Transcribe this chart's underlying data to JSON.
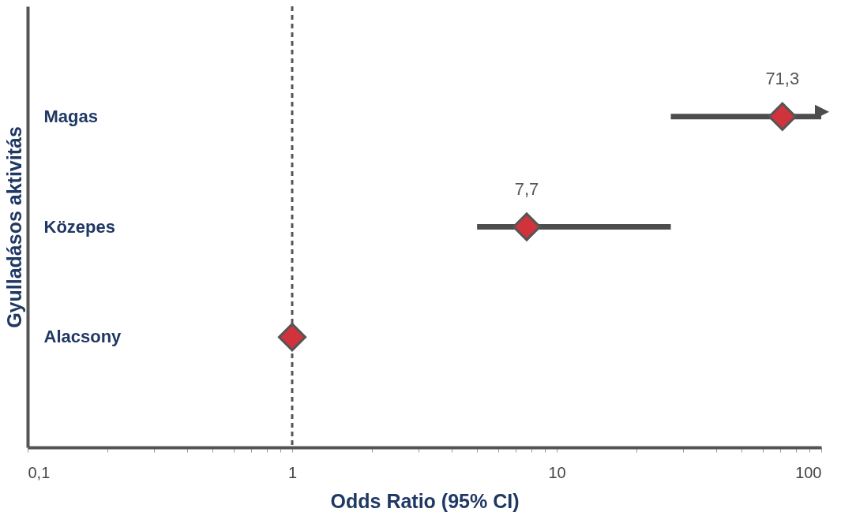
{
  "chart_data": {
    "type": "scatter",
    "orientation": "horizontal",
    "log": "x",
    "xlabel": "Odds Ratio (95% CI)",
    "ylabel": "Gyulladásos aktivitás",
    "categories": [
      "Magas",
      "Közepes",
      "Alacsony"
    ],
    "values": [
      71.3,
      7.7,
      1
    ],
    "errors": [
      [
        27,
        100
      ],
      [
        5,
        27
      ],
      null
    ],
    "value_labels": [
      "71,3",
      "7,7",
      null
    ],
    "color": "#d0333c",
    "marker": "diamond",
    "grid": false,
    "xlim": [
      0.1,
      100
    ],
    "xticks": [
      {
        "value": 0.1,
        "label": "0,1"
      },
      {
        "value": 0.2,
        "label": null
      },
      {
        "value": 0.3,
        "label": null
      },
      {
        "value": 0.4,
        "label": null
      },
      {
        "value": 0.5,
        "label": null
      },
      {
        "value": 0.6,
        "label": null
      },
      {
        "value": 0.7,
        "label": null
      },
      {
        "value": 0.8,
        "label": null
      },
      {
        "value": 0.9,
        "label": null
      },
      1,
      {
        "value": 2,
        "label": null
      },
      {
        "value": 3,
        "label": null
      },
      {
        "value": 4,
        "label": null
      },
      {
        "value": 5,
        "label": null
      },
      {
        "value": 6,
        "label": null
      },
      {
        "value": 7,
        "label": null
      },
      {
        "value": 8,
        "label": null
      },
      {
        "value": 9,
        "label": null
      },
      10,
      {
        "value": 20,
        "label": null
      },
      {
        "value": 30,
        "label": null
      },
      {
        "value": 40,
        "label": null
      },
      {
        "value": 50,
        "label": null
      },
      {
        "value": 60,
        "label": null
      },
      {
        "value": 70,
        "label": null
      },
      {
        "value": 80,
        "label": null
      },
      {
        "value": 90,
        "label": null
      },
      100
    ],
    "ref_lines": [
      {
        "axis": "x",
        "value": 1,
        "line_style": "dashed",
        "color": "#555555"
      }
    ]
  }
}
